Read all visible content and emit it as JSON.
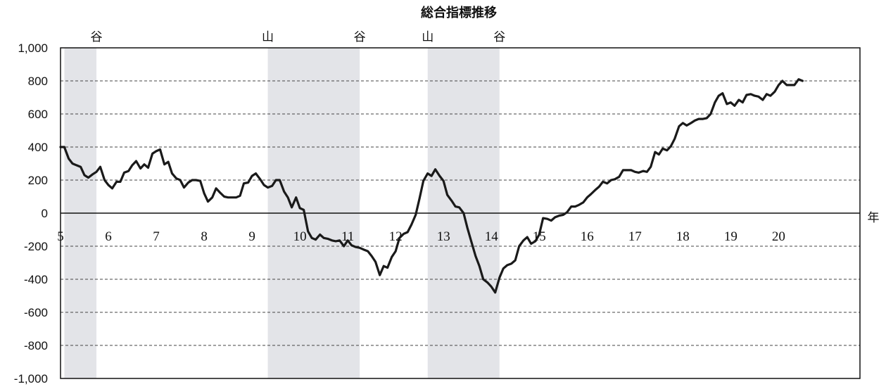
{
  "chart_data": {
    "type": "line",
    "title": "総合指標推移",
    "xlabel": "年",
    "ylabel": "",
    "ylim": [
      -1000,
      1000
    ],
    "xlim": [
      5,
      21.7
    ],
    "yticks": [
      "1,000",
      "800",
      "600",
      "400",
      "200",
      "0",
      "-200",
      "-400",
      "-600",
      "-800",
      "-1,000"
    ],
    "ytick_values": [
      1000,
      800,
      600,
      400,
      200,
      0,
      -200,
      -400,
      -600,
      -800,
      -1000
    ],
    "xticks": [
      "5",
      "6",
      "7",
      "8",
      "9",
      "10",
      "11",
      "12",
      "13",
      "14",
      "15",
      "16",
      "17",
      "18",
      "19",
      "20"
    ],
    "xtick_values": [
      5,
      6,
      7,
      8,
      9,
      10,
      11,
      12,
      13,
      14,
      15,
      16,
      17,
      18,
      19,
      20
    ],
    "grid": "horizontal dashed",
    "line_color": "#1a1a1a",
    "shade_color": "#e3e4e8",
    "shaded_periods": [
      [
        5.08,
        5.75
      ],
      [
        9.33,
        11.25
      ],
      [
        12.67,
        14.17
      ]
    ],
    "phase_labels": [
      {
        "text": "谷",
        "x": 5.75
      },
      {
        "text": "山",
        "x": 9.33
      },
      {
        "text": "谷",
        "x": 11.25
      },
      {
        "text": "山",
        "x": 12.67
      },
      {
        "text": "谷",
        "x": 14.17
      }
    ],
    "series": [
      {
        "x": [
          5.0,
          5.08,
          5.17,
          5.25,
          5.33,
          5.42,
          5.5,
          5.58,
          5.67,
          5.75,
          5.83,
          5.92,
          6.0,
          6.08,
          6.17,
          6.25,
          6.33,
          6.42,
          6.5,
          6.58,
          6.67,
          6.75,
          6.83,
          6.92,
          7.0,
          7.08,
          7.17,
          7.25,
          7.33,
          7.42,
          7.5,
          7.58,
          7.67,
          7.75,
          7.83,
          7.92,
          8.0,
          8.08,
          8.17,
          8.25,
          8.33,
          8.42,
          8.5,
          8.58,
          8.67,
          8.75,
          8.83,
          8.92,
          9.0,
          9.08,
          9.17,
          9.25,
          9.33,
          9.42,
          9.5,
          9.58,
          9.67,
          9.75,
          9.83,
          9.92,
          10.0,
          10.08,
          10.17,
          10.25,
          10.33,
          10.42,
          10.5,
          10.58,
          10.67,
          10.75,
          10.83,
          10.92,
          11.0,
          11.08,
          11.17,
          11.25,
          11.33,
          11.42,
          11.5,
          11.58,
          11.67,
          11.75,
          11.83,
          11.92,
          12.0,
          12.08,
          12.17,
          12.25,
          12.33,
          12.42,
          12.5,
          12.58,
          12.67,
          12.75,
          12.83,
          12.92,
          13.0,
          13.08,
          13.17,
          13.25,
          13.33,
          13.42,
          13.5,
          13.58,
          13.67,
          13.75,
          13.83,
          13.92,
          14.0,
          14.08,
          14.17,
          14.25,
          14.33,
          14.42,
          14.5,
          14.58,
          14.67,
          14.75,
          14.83,
          14.92,
          15.0,
          15.08,
          15.17,
          15.25,
          15.33,
          15.42,
          15.5,
          15.58,
          15.67,
          15.75,
          15.83,
          15.92,
          16.0,
          16.08,
          16.17,
          16.25,
          16.33,
          16.42,
          16.5,
          16.58,
          16.67,
          16.75,
          16.83,
          16.92,
          17.0,
          17.08,
          17.17,
          17.25,
          17.33,
          17.42,
          17.5,
          17.58,
          17.67,
          17.75,
          17.83,
          17.92,
          18.0,
          18.08,
          18.17,
          18.25,
          18.33,
          18.42,
          18.5,
          18.58,
          18.67,
          18.75,
          18.83,
          18.92,
          19.0,
          19.08,
          19.17,
          19.25,
          19.33,
          19.42,
          19.5,
          19.58,
          19.67,
          19.75,
          19.83,
          19.92,
          20.0,
          20.08,
          20.17,
          20.25,
          20.33,
          20.42,
          20.5
        ],
        "values": [
          400,
          400,
          330,
          300,
          290,
          280,
          230,
          215,
          235,
          250,
          280,
          200,
          170,
          150,
          190,
          190,
          245,
          255,
          290,
          315,
          270,
          295,
          275,
          360,
          375,
          385,
          295,
          310,
          240,
          210,
          200,
          155,
          185,
          200,
          200,
          195,
          120,
          70,
          95,
          150,
          125,
          100,
          95,
          95,
          95,
          105,
          180,
          185,
          225,
          240,
          205,
          170,
          155,
          165,
          200,
          200,
          130,
          95,
          35,
          95,
          30,
          20,
          -110,
          -150,
          -160,
          -130,
          -150,
          -155,
          -165,
          -170,
          -165,
          -200,
          -165,
          -195,
          -205,
          -210,
          -220,
          -230,
          -260,
          -295,
          -375,
          -320,
          -330,
          -265,
          -230,
          -150,
          -125,
          -115,
          -70,
          -10,
          90,
          195,
          240,
          225,
          265,
          225,
          195,
          110,
          75,
          40,
          35,
          0,
          -90,
          -170,
          -260,
          -320,
          -400,
          -420,
          -445,
          -480,
          -390,
          -335,
          -315,
          -305,
          -285,
          -200,
          -165,
          -145,
          -185,
          -170,
          -130,
          -30,
          -35,
          -45,
          -25,
          -15,
          -10,
          5,
          40,
          40,
          50,
          65,
          95,
          115,
          140,
          160,
          190,
          180,
          200,
          205,
          220,
          260,
          260,
          260,
          250,
          245,
          255,
          250,
          280,
          370,
          355,
          390,
          380,
          405,
          450,
          525,
          545,
          530,
          545,
          560,
          570,
          570,
          575,
          600,
          670,
          710,
          725,
          660,
          670,
          650,
          685,
          670,
          715,
          720,
          710,
          705,
          685,
          720,
          710,
          735,
          775,
          800,
          775,
          775,
          775,
          810,
          800
        ]
      }
    ]
  }
}
